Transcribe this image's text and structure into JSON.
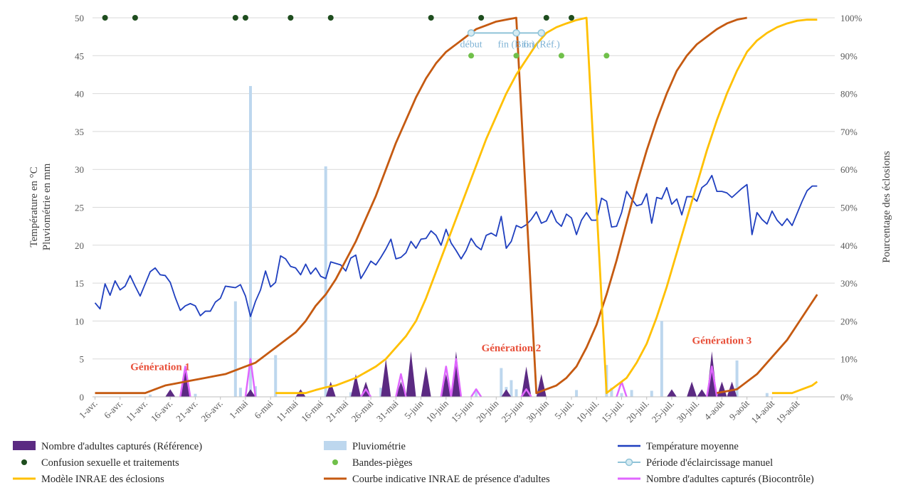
{
  "chart_data": {
    "type": "combo",
    "start_date": "2023-04-01",
    "days": 148,
    "y_left": {
      "label_line1": "Température en °C",
      "label_line2": "Pluviométrie en mm",
      "min": 0,
      "max": 50,
      "step": 5,
      "ticks": [
        "0",
        "5",
        "10",
        "15",
        "20",
        "25",
        "30",
        "35",
        "40",
        "45",
        "50"
      ]
    },
    "y_right": {
      "label": "Pourcentage des éclosions",
      "min": 0,
      "max": 100,
      "step": 10,
      "ticks": [
        "0%",
        "10%",
        "20%",
        "30%",
        "40%",
        "50%",
        "60%",
        "70%",
        "80%",
        "90%",
        "100%"
      ]
    },
    "x_ticks": [
      {
        "day": 0,
        "label": "1-avr."
      },
      {
        "day": 5,
        "label": "6-avr."
      },
      {
        "day": 10,
        "label": "11-avr."
      },
      {
        "day": 15,
        "label": "16-avr."
      },
      {
        "day": 20,
        "label": "21-avr."
      },
      {
        "day": 25,
        "label": "26-avr."
      },
      {
        "day": 30,
        "label": "1-mai"
      },
      {
        "day": 35,
        "label": "6-mai"
      },
      {
        "day": 40,
        "label": "11-mai"
      },
      {
        "day": 45,
        "label": "16-mai"
      },
      {
        "day": 50,
        "label": "21-mai"
      },
      {
        "day": 55,
        "label": "26-mai"
      },
      {
        "day": 60,
        "label": "31-mai"
      },
      {
        "day": 65,
        "label": "5-juin"
      },
      {
        "day": 70,
        "label": "10-juin"
      },
      {
        "day": 75,
        "label": "15-juin"
      },
      {
        "day": 80,
        "label": "20-juin"
      },
      {
        "day": 85,
        "label": "25-juin"
      },
      {
        "day": 90,
        "label": "30-juin"
      },
      {
        "day": 95,
        "label": "5-juil."
      },
      {
        "day": 100,
        "label": "10-juil."
      },
      {
        "day": 105,
        "label": "15-juil."
      },
      {
        "day": 110,
        "label": "20-juil."
      },
      {
        "day": 115,
        "label": "25-juil."
      },
      {
        "day": 120,
        "label": "30-juil."
      },
      {
        "day": 125,
        "label": "4-août"
      },
      {
        "day": 130,
        "label": "9-août"
      },
      {
        "day": 135,
        "label": "14-août"
      },
      {
        "day": 140,
        "label": "19-août"
      }
    ],
    "temperature": [
      [
        0,
        12.4
      ],
      [
        1,
        11.6
      ],
      [
        2,
        14.9
      ],
      [
        3,
        13.4
      ],
      [
        4,
        15.3
      ],
      [
        5,
        14.1
      ],
      [
        6,
        14.6
      ],
      [
        7,
        16
      ],
      [
        8,
        14.6
      ],
      [
        9,
        13.3
      ],
      [
        10,
        14.9
      ],
      [
        11,
        16.5
      ],
      [
        12,
        17
      ],
      [
        13,
        16.1
      ],
      [
        14,
        16
      ],
      [
        15,
        15.1
      ],
      [
        16,
        13.1
      ],
      [
        17,
        11.4
      ],
      [
        18,
        12
      ],
      [
        19,
        12.3
      ],
      [
        20,
        12
      ],
      [
        21,
        10.7
      ],
      [
        22,
        11.3
      ],
      [
        23,
        11.3
      ],
      [
        24,
        12.5
      ],
      [
        25,
        13
      ],
      [
        26,
        14.6
      ],
      [
        27,
        14.5
      ],
      [
        28,
        14.4
      ],
      [
        29,
        14.8
      ],
      [
        30,
        13.3
      ],
      [
        31,
        10.6
      ],
      [
        32,
        12.6
      ],
      [
        33,
        14.1
      ],
      [
        34,
        16.6
      ],
      [
        35,
        14.5
      ],
      [
        36,
        15.1
      ],
      [
        37,
        18.6
      ],
      [
        38,
        18.2
      ],
      [
        39,
        17.2
      ],
      [
        40,
        17
      ],
      [
        41,
        16.1
      ],
      [
        42,
        17.5
      ],
      [
        43,
        16.2
      ],
      [
        44,
        17
      ],
      [
        45,
        15.9
      ],
      [
        46,
        15.6
      ],
      [
        47,
        17.8
      ],
      [
        48,
        17.6
      ],
      [
        49,
        17.4
      ],
      [
        50,
        16.6
      ],
      [
        51,
        18.3
      ],
      [
        52,
        18.7
      ],
      [
        53,
        15.6
      ],
      [
        54,
        16.7
      ],
      [
        55,
        17.9
      ],
      [
        56,
        17.4
      ],
      [
        57,
        18.4
      ],
      [
        58,
        19.5
      ],
      [
        59,
        20.8
      ],
      [
        60,
        18.2
      ],
      [
        61,
        18.4
      ],
      [
        62,
        19
      ],
      [
        63,
        20.5
      ],
      [
        64,
        19.6
      ],
      [
        65,
        20.8
      ],
      [
        66,
        20.9
      ],
      [
        67,
        21.9
      ],
      [
        68,
        21.3
      ],
      [
        69,
        20
      ],
      [
        70,
        22.1
      ],
      [
        71,
        20.3
      ],
      [
        72,
        19.3
      ],
      [
        73,
        18.2
      ],
      [
        74,
        19.3
      ],
      [
        75,
        20.9
      ],
      [
        76,
        19.9
      ],
      [
        77,
        19.4
      ],
      [
        78,
        21.3
      ],
      [
        79,
        21.6
      ],
      [
        80,
        21.2
      ],
      [
        81,
        23.8
      ],
      [
        82,
        19.6
      ],
      [
        83,
        20.5
      ],
      [
        84,
        22.6
      ],
      [
        85,
        22.3
      ],
      [
        86,
        22.7
      ],
      [
        87,
        23.4
      ],
      [
        88,
        24.4
      ],
      [
        89,
        22.9
      ],
      [
        90,
        23.2
      ],
      [
        91,
        24.6
      ],
      [
        92,
        23.1
      ],
      [
        93,
        22.5
      ],
      [
        94,
        24.1
      ],
      [
        95,
        23.6
      ],
      [
        96,
        21.4
      ],
      [
        97,
        23.3
      ],
      [
        98,
        24.3
      ],
      [
        99,
        23.3
      ],
      [
        100,
        23.3
      ],
      [
        101,
        26.2
      ],
      [
        102,
        25.8
      ],
      [
        103,
        22.4
      ],
      [
        104,
        22.5
      ],
      [
        105,
        24.3
      ],
      [
        106,
        27.1
      ],
      [
        107,
        26.1
      ],
      [
        108,
        25.2
      ],
      [
        109,
        25.4
      ],
      [
        110,
        26.8
      ],
      [
        111,
        22.9
      ],
      [
        112,
        26.3
      ],
      [
        113,
        26.1
      ],
      [
        114,
        27.6
      ],
      [
        115,
        25.4
      ],
      [
        116,
        26.1
      ],
      [
        117,
        24
      ],
      [
        118,
        26.4
      ],
      [
        119,
        26.4
      ],
      [
        120,
        25.8
      ],
      [
        121,
        27.6
      ],
      [
        122,
        28.1
      ],
      [
        123,
        29.2
      ],
      [
        124,
        27.1
      ],
      [
        125,
        27.1
      ],
      [
        126,
        26.9
      ],
      [
        127,
        26.3
      ],
      [
        128,
        26.9
      ],
      [
        129,
        27.5
      ],
      [
        130,
        28
      ],
      [
        131,
        21.4
      ],
      [
        132,
        24.3
      ],
      [
        133,
        23.4
      ],
      [
        134,
        22.8
      ],
      [
        135,
        24.5
      ],
      [
        136,
        23.3
      ],
      [
        137,
        22.6
      ],
      [
        138,
        23.5
      ],
      [
        139,
        22.6
      ],
      [
        140,
        24.2
      ],
      [
        141,
        25.8
      ],
      [
        142,
        27.2
      ],
      [
        143,
        27.8
      ],
      [
        144,
        27.8
      ]
    ],
    "rainfall": [
      [
        11,
        0.3
      ],
      [
        20,
        0.4
      ],
      [
        28,
        12.6
      ],
      [
        29,
        1.2
      ],
      [
        31,
        41
      ],
      [
        32,
        1.4
      ],
      [
        36,
        5.5
      ],
      [
        46,
        30.4
      ],
      [
        47,
        1
      ],
      [
        51,
        0.6
      ],
      [
        57,
        1.2
      ],
      [
        58,
        1.3
      ],
      [
        66,
        0.5
      ],
      [
        76,
        1
      ],
      [
        81,
        3.8
      ],
      [
        82,
        1.3
      ],
      [
        83,
        2.2
      ],
      [
        84,
        1
      ],
      [
        96,
        0.9
      ],
      [
        102,
        4.2
      ],
      [
        103,
        1.2
      ],
      [
        105,
        0.5
      ],
      [
        107,
        0.9
      ],
      [
        111,
        0.8
      ],
      [
        113,
        10
      ],
      [
        127,
        1.1
      ],
      [
        128,
        4.8
      ],
      [
        134,
        0.5
      ]
    ],
    "captures_reference": [
      [
        15,
        1
      ],
      [
        18,
        4
      ],
      [
        31,
        1
      ],
      [
        41,
        1
      ],
      [
        47,
        2
      ],
      [
        52,
        3
      ],
      [
        54,
        2
      ],
      [
        58,
        5
      ],
      [
        61,
        2
      ],
      [
        63,
        6
      ],
      [
        66,
        4
      ],
      [
        70,
        3
      ],
      [
        72,
        6
      ],
      [
        82,
        1
      ],
      [
        86,
        4
      ],
      [
        89,
        3
      ],
      [
        115,
        1
      ],
      [
        119,
        2
      ],
      [
        121,
        1
      ],
      [
        123,
        6
      ],
      [
        125,
        2
      ],
      [
        127,
        2
      ]
    ],
    "captures_biocontrole": [
      [
        18,
        4
      ],
      [
        31,
        5
      ],
      [
        54,
        1
      ],
      [
        61,
        3
      ],
      [
        70,
        4
      ],
      [
        72,
        5
      ],
      [
        76,
        1
      ],
      [
        86,
        1
      ],
      [
        105,
        2
      ],
      [
        123,
        4
      ]
    ],
    "modele_eclosions": [
      [
        36,
        1
      ],
      [
        42,
        1
      ],
      [
        44,
        1.8
      ],
      [
        46,
        2.5
      ],
      [
        48,
        3
      ],
      [
        50,
        4
      ],
      [
        52,
        5
      ],
      [
        54,
        6.5
      ],
      [
        56,
        8
      ],
      [
        58,
        10
      ],
      [
        60,
        13
      ],
      [
        62,
        16
      ],
      [
        64,
        20
      ],
      [
        66,
        26
      ],
      [
        68,
        33
      ],
      [
        70,
        40
      ],
      [
        72,
        47
      ],
      [
        74,
        54
      ],
      [
        76,
        61
      ],
      [
        78,
        68
      ],
      [
        80,
        74
      ],
      [
        82,
        80
      ],
      [
        84,
        85
      ],
      [
        86,
        89
      ],
      [
        88,
        93
      ],
      [
        90,
        96
      ],
      [
        92,
        97.5
      ],
      [
        94,
        98.5
      ],
      [
        96,
        99.4
      ],
      [
        98,
        100
      ],
      [
        102,
        1
      ],
      [
        104,
        3
      ],
      [
        106,
        5
      ],
      [
        108,
        9
      ],
      [
        110,
        14
      ],
      [
        112,
        21
      ],
      [
        114,
        29
      ],
      [
        116,
        38
      ],
      [
        118,
        47
      ],
      [
        120,
        56
      ],
      [
        122,
        65
      ],
      [
        124,
        73
      ],
      [
        126,
        80
      ],
      [
        128,
        86
      ],
      [
        130,
        91
      ],
      [
        132,
        94
      ],
      [
        134,
        96
      ],
      [
        136,
        97.5
      ],
      [
        138,
        98.5
      ],
      [
        140,
        99.2
      ],
      [
        142,
        99.5
      ],
      [
        144,
        99.5
      ],
      [
        135,
        1
      ],
      [
        139,
        1
      ],
      [
        141,
        2
      ],
      [
        143,
        3
      ],
      [
        144,
        4
      ]
    ],
    "presence_adultes": [
      [
        0,
        1
      ],
      [
        10,
        1
      ],
      [
        12,
        2
      ],
      [
        14,
        3
      ],
      [
        16,
        3.5
      ],
      [
        18,
        4
      ],
      [
        20,
        4.5
      ],
      [
        22,
        5
      ],
      [
        24,
        5.5
      ],
      [
        26,
        6
      ],
      [
        28,
        7
      ],
      [
        30,
        8
      ],
      [
        32,
        9
      ],
      [
        34,
        11
      ],
      [
        36,
        13
      ],
      [
        38,
        15
      ],
      [
        40,
        17
      ],
      [
        42,
        20
      ],
      [
        44,
        24
      ],
      [
        46,
        27
      ],
      [
        48,
        31
      ],
      [
        50,
        36
      ],
      [
        52,
        41
      ],
      [
        54,
        47
      ],
      [
        56,
        53
      ],
      [
        58,
        60
      ],
      [
        60,
        67
      ],
      [
        62,
        73
      ],
      [
        64,
        79
      ],
      [
        66,
        84
      ],
      [
        68,
        88
      ],
      [
        70,
        91
      ],
      [
        72,
        93
      ],
      [
        74,
        95
      ],
      [
        76,
        97
      ],
      [
        78,
        98
      ],
      [
        80,
        99
      ],
      [
        82,
        99.5
      ],
      [
        84,
        100
      ],
      [
        88,
        1
      ],
      [
        90,
        2
      ],
      [
        92,
        3
      ],
      [
        94,
        5
      ],
      [
        96,
        8
      ],
      [
        98,
        13
      ],
      [
        100,
        19
      ],
      [
        102,
        27
      ],
      [
        104,
        36
      ],
      [
        106,
        46
      ],
      [
        108,
        56
      ],
      [
        110,
        65
      ],
      [
        112,
        73
      ],
      [
        114,
        80
      ],
      [
        116,
        86
      ],
      [
        118,
        90
      ],
      [
        120,
        93
      ],
      [
        122,
        95
      ],
      [
        124,
        97
      ],
      [
        126,
        98.5
      ],
      [
        128,
        99.5
      ],
      [
        130,
        100
      ],
      [
        124,
        1
      ],
      [
        128,
        2
      ],
      [
        130,
        4
      ],
      [
        132,
        6
      ],
      [
        134,
        9
      ],
      [
        136,
        12
      ],
      [
        138,
        15
      ],
      [
        140,
        19
      ],
      [
        142,
        23
      ],
      [
        144,
        27
      ]
    ],
    "confusion_sexuelle_traitements": [
      [
        2,
        50
      ],
      [
        8,
        50
      ],
      [
        28,
        50
      ],
      [
        30,
        50
      ],
      [
        39,
        50
      ],
      [
        47,
        50
      ],
      [
        67,
        50
      ],
      [
        77,
        50
      ],
      [
        90,
        50
      ],
      [
        95,
        50
      ]
    ],
    "bandes_pieges": [
      [
        75,
        45
      ],
      [
        84,
        45
      ],
      [
        93,
        45
      ],
      [
        102,
        45
      ]
    ],
    "eclaircissage": {
      "points": [
        [
          75,
          48
        ],
        [
          84,
          48
        ],
        [
          89,
          48
        ]
      ],
      "labels": [
        "début",
        "fin (Bio.)",
        "fin (Réf.)"
      ]
    },
    "annotations": [
      {
        "text": "Génération 1",
        "day": 13,
        "y": 3.5
      },
      {
        "text": "Génération 2",
        "day": 83,
        "y": 6
      },
      {
        "text": "Génération 3",
        "day": 125,
        "y": 7
      }
    ],
    "legend": [
      "Nombre d'adultes capturés (Référence)",
      "Pluviométrie",
      "Température  moyenne",
      "Confusion sexuelle et traitements",
      "Bandes-pièges",
      "Période d'éclaircissage manuel",
      "Modèle INRAE des éclosions",
      "Courbe indicative INRAE de présence d'adultes",
      "Nombre d'adultes capturés (Biocontrôle)"
    ],
    "colors": {
      "reference": "#5b2a82",
      "pluviometrie": "#bdd7ee",
      "temperature": "#1f3fbf",
      "confusion": "#1e4d1e",
      "bandes": "#70c04a",
      "eclaircissage": "#8fc3d8",
      "modele": "#ffc000",
      "presence": "#c55a11",
      "biocontrole": "#e066ff",
      "annotation": "#e8503a"
    }
  }
}
